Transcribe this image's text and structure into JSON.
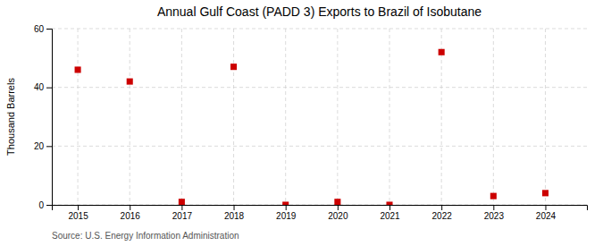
{
  "chart_data": {
    "type": "scatter",
    "title": "Annual Gulf Coast (PADD 3) Exports to Brazil of Isobutane",
    "y_label": "Thousand Barrels",
    "annotations": [
      "Source: U.S. Energy Information Administration"
    ],
    "x": [
      2015,
      2016,
      2017,
      2018,
      2019,
      2020,
      2021,
      2022,
      2023,
      2024
    ],
    "values": [
      46,
      42,
      1,
      47,
      0,
      1,
      0,
      52,
      3,
      4
    ],
    "color": "#cc0000",
    "marker": "square",
    "xlim": [
      2014.5,
      2024.8
    ],
    "xticks": [
      2015,
      2016,
      2017,
      2018,
      2019,
      2020,
      2021,
      2022,
      2023,
      2024
    ],
    "ylim": [
      0,
      60
    ],
    "yticks": [
      0,
      20,
      40,
      60
    ],
    "grid": true
  }
}
